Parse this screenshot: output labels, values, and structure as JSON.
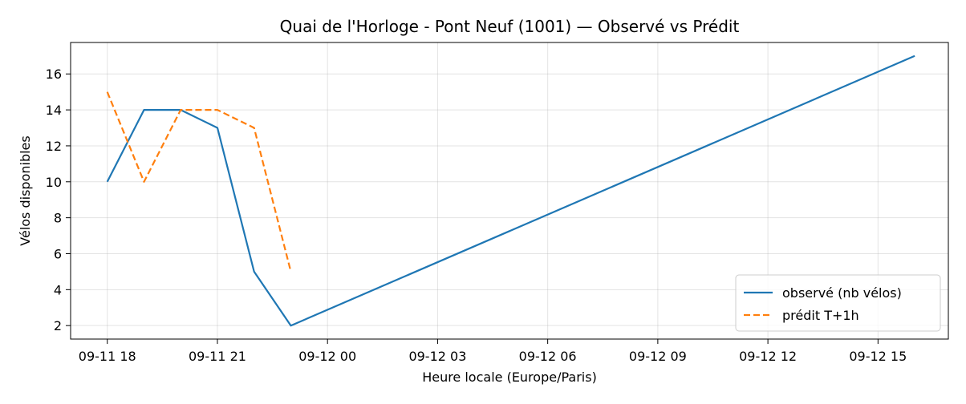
{
  "chart_data": {
    "type": "line",
    "title": "Quai de l'Horloge - Pont Neuf (1001) — Observé vs Prédit",
    "xlabel": "Heure locale (Europe/Paris)",
    "ylabel": "Vélos disponibles",
    "x_ticks": [
      {
        "label": "09-11 18",
        "value": "2024-09-11 18:00"
      },
      {
        "label": "09-11 21",
        "value": "2024-09-11 21:00"
      },
      {
        "label": "09-12 00",
        "value": "2024-09-12 00:00"
      },
      {
        "label": "09-12 03",
        "value": "2024-09-12 03:00"
      },
      {
        "label": "09-12 06",
        "value": "2024-09-12 06:00"
      },
      {
        "label": "09-12 09",
        "value": "2024-09-12 09:00"
      },
      {
        "label": "09-12 12",
        "value": "2024-09-12 12:00"
      },
      {
        "label": "09-12 15",
        "value": "2024-09-12 15:00"
      }
    ],
    "y_ticks": [
      2,
      4,
      6,
      8,
      10,
      12,
      14,
      16
    ],
    "xlim": [
      "2024-09-11 17:00",
      "2024-09-12 16:55"
    ],
    "ylim": [
      1.25,
      17.75
    ],
    "grid": true,
    "legend_position": "lower right",
    "series": [
      {
        "name": "observé (nb vélos)",
        "color": "#1f77b4",
        "dash": "solid",
        "points": [
          {
            "x": "2024-09-11 18:00",
            "y": 10
          },
          {
            "x": "2024-09-11 19:00",
            "y": 14
          },
          {
            "x": "2024-09-11 20:00",
            "y": 14
          },
          {
            "x": "2024-09-11 21:00",
            "y": 13
          },
          {
            "x": "2024-09-11 22:00",
            "y": 5
          },
          {
            "x": "2024-09-11 23:00",
            "y": 2
          },
          {
            "x": "2024-09-12 16:00",
            "y": 17
          }
        ]
      },
      {
        "name": "prédit T+1h",
        "color": "#ff7f0e",
        "dash": "dashed",
        "points": [
          {
            "x": "2024-09-11 18:00",
            "y": 15
          },
          {
            "x": "2024-09-11 19:00",
            "y": 10
          },
          {
            "x": "2024-09-11 20:00",
            "y": 14
          },
          {
            "x": "2024-09-11 21:00",
            "y": 14
          },
          {
            "x": "2024-09-11 22:00",
            "y": 13
          },
          {
            "x": "2024-09-11 23:00",
            "y": 5
          }
        ]
      }
    ]
  }
}
